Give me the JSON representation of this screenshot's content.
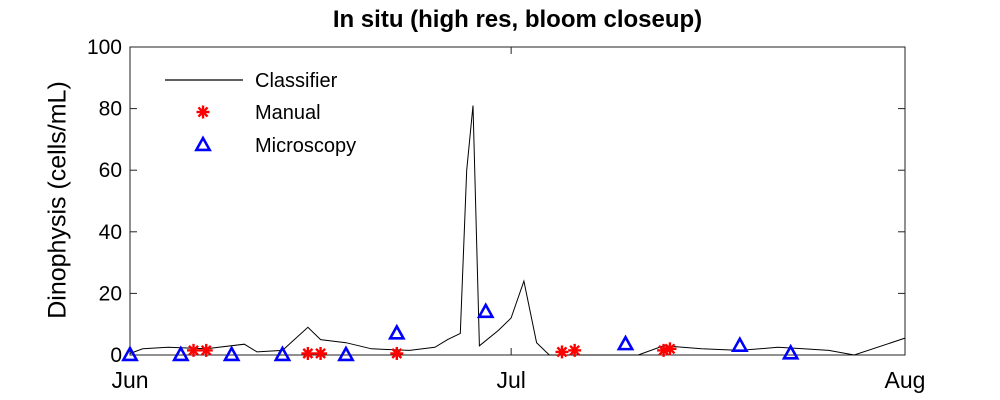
{
  "chart_data": {
    "type": "line",
    "title": "In situ (high res, bloom closeup)",
    "xlabel": "",
    "ylabel": "Dinophysis (cells/mL)",
    "x_ticks": [
      "Jun",
      "Jul",
      "Aug"
    ],
    "x_tick_dates": [
      "2018-06-01",
      "2018-07-01",
      "2018-08-01"
    ],
    "xlim": [
      "2018-06-01",
      "2018-08-01"
    ],
    "ylim": [
      0,
      100
    ],
    "y_ticks": [
      0,
      20,
      40,
      60,
      80,
      100
    ],
    "grid": false,
    "legend_position": "top-left",
    "colors": {
      "classifier": "#000000",
      "manual": "#ff0000",
      "microscopy": "#0000ff"
    },
    "series": [
      {
        "name": "Classifier",
        "style": "line",
        "points": [
          [
            "2018-06-01",
            0.5
          ],
          [
            "2018-06-02",
            2.0
          ],
          [
            "2018-06-04",
            2.5
          ],
          [
            "2018-06-07",
            2.0
          ],
          [
            "2018-06-10",
            3.5
          ],
          [
            "2018-06-11",
            1.0
          ],
          [
            "2018-06-13",
            1.5
          ],
          [
            "2018-06-15",
            9.0
          ],
          [
            "2018-06-16",
            5.0
          ],
          [
            "2018-06-18",
            4.0
          ],
          [
            "2018-06-20",
            2.0
          ],
          [
            "2018-06-23",
            1.5
          ],
          [
            "2018-06-25",
            2.5
          ],
          [
            "2018-06-26",
            5.0
          ],
          [
            "2018-06-27",
            7.0
          ],
          [
            "2018-06-27.5",
            60.0
          ],
          [
            "2018-06-28",
            81.0
          ],
          [
            "2018-06-28.5",
            3.0
          ],
          [
            "2018-06-30",
            8.0
          ],
          [
            "2018-07-01",
            12.0
          ],
          [
            "2018-07-02",
            24.0
          ],
          [
            "2018-07-03",
            4.0
          ],
          [
            "2018-07-04",
            0.0
          ],
          [
            "2018-07-11",
            0.0
          ],
          [
            "2018-07-13",
            3.0
          ],
          [
            "2018-07-16",
            2.0
          ],
          [
            "2018-07-19",
            1.5
          ],
          [
            "2018-07-22",
            2.5
          ],
          [
            "2018-07-24",
            2.0
          ],
          [
            "2018-07-26",
            1.5
          ],
          [
            "2018-07-28",
            0.0
          ],
          [
            "2018-08-01",
            5.5
          ]
        ]
      },
      {
        "name": "Manual",
        "style": "marker-star",
        "points": [
          [
            "2018-06-06",
            1.5
          ],
          [
            "2018-06-07",
            1.5
          ],
          [
            "2018-06-15",
            0.5
          ],
          [
            "2018-06-16",
            0.5
          ],
          [
            "2018-06-22",
            0.5
          ],
          [
            "2018-07-05",
            1.0
          ],
          [
            "2018-07-06",
            1.5
          ],
          [
            "2018-07-13",
            1.5
          ],
          [
            "2018-07-13.5",
            2.0
          ]
        ]
      },
      {
        "name": "Microscopy",
        "style": "marker-triangle",
        "points": [
          [
            "2018-06-01",
            0.0
          ],
          [
            "2018-06-05",
            0.0
          ],
          [
            "2018-06-09",
            0.0
          ],
          [
            "2018-06-13",
            0.0
          ],
          [
            "2018-06-18",
            0.0
          ],
          [
            "2018-06-22",
            7.0
          ],
          [
            "2018-06-29",
            14.0
          ],
          [
            "2018-07-10",
            3.5
          ],
          [
            "2018-07-19",
            3.0
          ],
          [
            "2018-07-23",
            0.5
          ]
        ]
      }
    ]
  }
}
